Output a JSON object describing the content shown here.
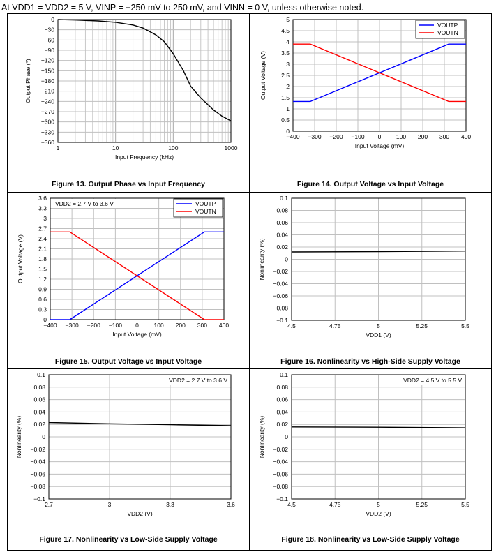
{
  "header": {
    "text": "At VDD1 = VDD2 = 5 V, VINP = −250 mV to 250 mV, and VINN = 0 V, unless otherwise noted."
  },
  "chart_data": [
    {
      "type": "line",
      "caption": "Figure 13. Output Phase vs Input Frequency",
      "xlabel": "Input Frequency (kHz)",
      "ylabel": "Output Phase (°)",
      "xscale": "log",
      "xlim": [
        1,
        1000
      ],
      "ylim": [
        -360,
        0
      ],
      "xticks": [
        1,
        10,
        100,
        1000
      ],
      "xtick_labels": [
        "1",
        "10",
        "100",
        "1000"
      ],
      "yticks": [
        0,
        -30,
        -60,
        -90,
        -120,
        -150,
        -180,
        -210,
        -240,
        -270,
        -300,
        -330,
        -360
      ],
      "ytick_labels": [
        "0",
        "−30",
        "−60",
        "−90",
        "−120",
        "−150",
        "−180",
        "−210",
        "−240",
        "−270",
        "−300",
        "−330",
        "−360"
      ],
      "grid": true,
      "legend": null,
      "note": "",
      "series": [
        {
          "name": "",
          "color": "#000000",
          "x": [
            1,
            2,
            5,
            10,
            20,
            30,
            50,
            70,
            100,
            150,
            200,
            300,
            500,
            700,
            1000
          ],
          "y": [
            0,
            -1.5,
            -4,
            -8,
            -16,
            -25,
            -45,
            -65,
            -100,
            -150,
            -195,
            -230,
            -265,
            -283,
            -297
          ]
        }
      ]
    },
    {
      "type": "line",
      "caption": "Figure 14. Output Voltage vs Input Voltage",
      "xlabel": "Input Voltage (mV)",
      "ylabel": "Output Voltage (V)",
      "xscale": "linear",
      "xlim": [
        -400,
        400
      ],
      "ylim": [
        0,
        5
      ],
      "xticks": [
        -400,
        -300,
        -200,
        -100,
        0,
        100,
        200,
        300,
        400
      ],
      "xtick_labels": [
        "−400",
        "−300",
        "−200",
        "−100",
        "0",
        "100",
        "200",
        "300",
        "400"
      ],
      "yticks": [
        0,
        0.5,
        1,
        1.5,
        2,
        2.5,
        3,
        3.5,
        4,
        4.5,
        5
      ],
      "ytick_labels": [
        "0",
        "0.5",
        "1",
        "1.5",
        "2",
        "2.5",
        "3",
        "3.5",
        "4",
        "4.5",
        "5"
      ],
      "grid": true,
      "legend": "top-right",
      "note": "",
      "series": [
        {
          "name": "VOUTP",
          "color": "#0000ff",
          "x": [
            -400,
            -320,
            320,
            400
          ],
          "y": [
            1.33,
            1.33,
            3.9,
            3.9
          ]
        },
        {
          "name": "VOUTN",
          "color": "#ff0000",
          "x": [
            -400,
            -320,
            320,
            400
          ],
          "y": [
            3.9,
            3.9,
            1.33,
            1.33
          ]
        }
      ]
    },
    {
      "type": "line",
      "caption": "Figure 15. Output Voltage vs Input Voltage",
      "xlabel": "Input Voltage (mV)",
      "ylabel": "Output Voltage (V)",
      "xscale": "linear",
      "xlim": [
        -400,
        400
      ],
      "ylim": [
        0,
        3.6
      ],
      "xticks": [
        -400,
        -300,
        -200,
        -100,
        0,
        100,
        200,
        300,
        400
      ],
      "xtick_labels": [
        "−400",
        "−300",
        "−200",
        "−100",
        "0",
        "100",
        "200",
        "300",
        "400"
      ],
      "yticks": [
        0,
        0.3,
        0.6,
        0.9,
        1.2,
        1.5,
        1.8,
        2.1,
        2.4,
        2.7,
        3,
        3.3,
        3.6
      ],
      "ytick_labels": [
        "0",
        "0.3",
        "0.6",
        "0.9",
        "1.2",
        "1.5",
        "1.8",
        "2.1",
        "2.4",
        "2.7",
        "3",
        "3.3",
        "3.6"
      ],
      "grid": true,
      "legend": "top-right",
      "note": "VDD2 = 2.7 V to 3.6 V",
      "series": [
        {
          "name": "VOUTP",
          "color": "#0000ff",
          "x": [
            -400,
            -310,
            310,
            400
          ],
          "y": [
            0,
            0,
            2.6,
            2.6
          ]
        },
        {
          "name": "VOUTN",
          "color": "#ff0000",
          "x": [
            -400,
            -310,
            310,
            400
          ],
          "y": [
            2.6,
            2.6,
            0,
            0
          ]
        }
      ]
    },
    {
      "type": "line",
      "caption": "Figure 16. Nonlinearity vs High-Side Supply Voltage",
      "xlabel": "VDD1 (V)",
      "ylabel": "Nonlinearity (%)",
      "xscale": "linear",
      "xlim": [
        4.5,
        5.5
      ],
      "ylim": [
        -0.1,
        0.1
      ],
      "xticks": [
        4.5,
        4.75,
        5,
        5.25,
        5.5
      ],
      "xtick_labels": [
        "4.5",
        "4.75",
        "5",
        "5.25",
        "5.5"
      ],
      "yticks": [
        -0.1,
        -0.08,
        -0.06,
        -0.04,
        -0.02,
        0,
        0.02,
        0.04,
        0.06,
        0.08,
        0.1
      ],
      "ytick_labels": [
        "−0.1",
        "−0.08",
        "−0.06",
        "−0.04",
        "−0.02",
        "0",
        "0.02",
        "0.04",
        "0.06",
        "0.08",
        "0.1"
      ],
      "grid": true,
      "legend": null,
      "note": "",
      "series": [
        {
          "name": "",
          "color": "#000000",
          "x": [
            4.5,
            5,
            5.5
          ],
          "y": [
            0.012,
            0.0125,
            0.0135
          ]
        }
      ]
    },
    {
      "type": "line",
      "caption": "Figure 17. Nonlinearity vs Low-Side Supply Voltage",
      "xlabel": "VDD2 (V)",
      "ylabel": "Nonlinearity (%)",
      "xscale": "linear",
      "xlim": [
        2.7,
        3.6
      ],
      "ylim": [
        -0.1,
        0.1
      ],
      "xticks": [
        2.7,
        3,
        3.3,
        3.6
      ],
      "xtick_labels": [
        "2.7",
        "3",
        "3.3",
        "3.6"
      ],
      "yticks": [
        -0.1,
        -0.08,
        -0.06,
        -0.04,
        -0.02,
        0,
        0.02,
        0.04,
        0.06,
        0.08,
        0.1
      ],
      "ytick_labels": [
        "−0.1",
        "−0.08",
        "−0.06",
        "−0.04",
        "−0.02",
        "0",
        "0.02",
        "0.04",
        "0.06",
        "0.08",
        "0.1"
      ],
      "grid": true,
      "legend": null,
      "note": "VDD2 = 2.7 V to 3.6 V",
      "series": [
        {
          "name": "",
          "color": "#000000",
          "x": [
            2.7,
            3,
            3.3,
            3.6
          ],
          "y": [
            0.023,
            0.021,
            0.0195,
            0.018
          ]
        }
      ]
    },
    {
      "type": "line",
      "caption": "Figure 18. Nonlinearity vs Low-Side Supply Voltage",
      "xlabel": "VDD2 (V)",
      "ylabel": "Nonlinearity (%)",
      "xscale": "linear",
      "xlim": [
        4.5,
        5.5
      ],
      "ylim": [
        -0.1,
        0.1
      ],
      "xticks": [
        4.5,
        4.75,
        5,
        5.25,
        5.5
      ],
      "xtick_labels": [
        "4.5",
        "4.75",
        "5",
        "5.25",
        "5.5"
      ],
      "yticks": [
        -0.1,
        -0.08,
        -0.06,
        -0.04,
        -0.02,
        0,
        0.02,
        0.04,
        0.06,
        0.08,
        0.1
      ],
      "ytick_labels": [
        "−0.1",
        "−0.08",
        "−0.06",
        "−0.04",
        "−0.02",
        "0",
        "0.02",
        "0.04",
        "0.06",
        "0.08",
        "0.1"
      ],
      "grid": true,
      "legend": null,
      "note": "VDD2 = 4.5 V to 5.5 V",
      "series": [
        {
          "name": "",
          "color": "#000000",
          "x": [
            4.5,
            5,
            5.5
          ],
          "y": [
            0.016,
            0.0155,
            0.0145
          ]
        }
      ]
    }
  ]
}
